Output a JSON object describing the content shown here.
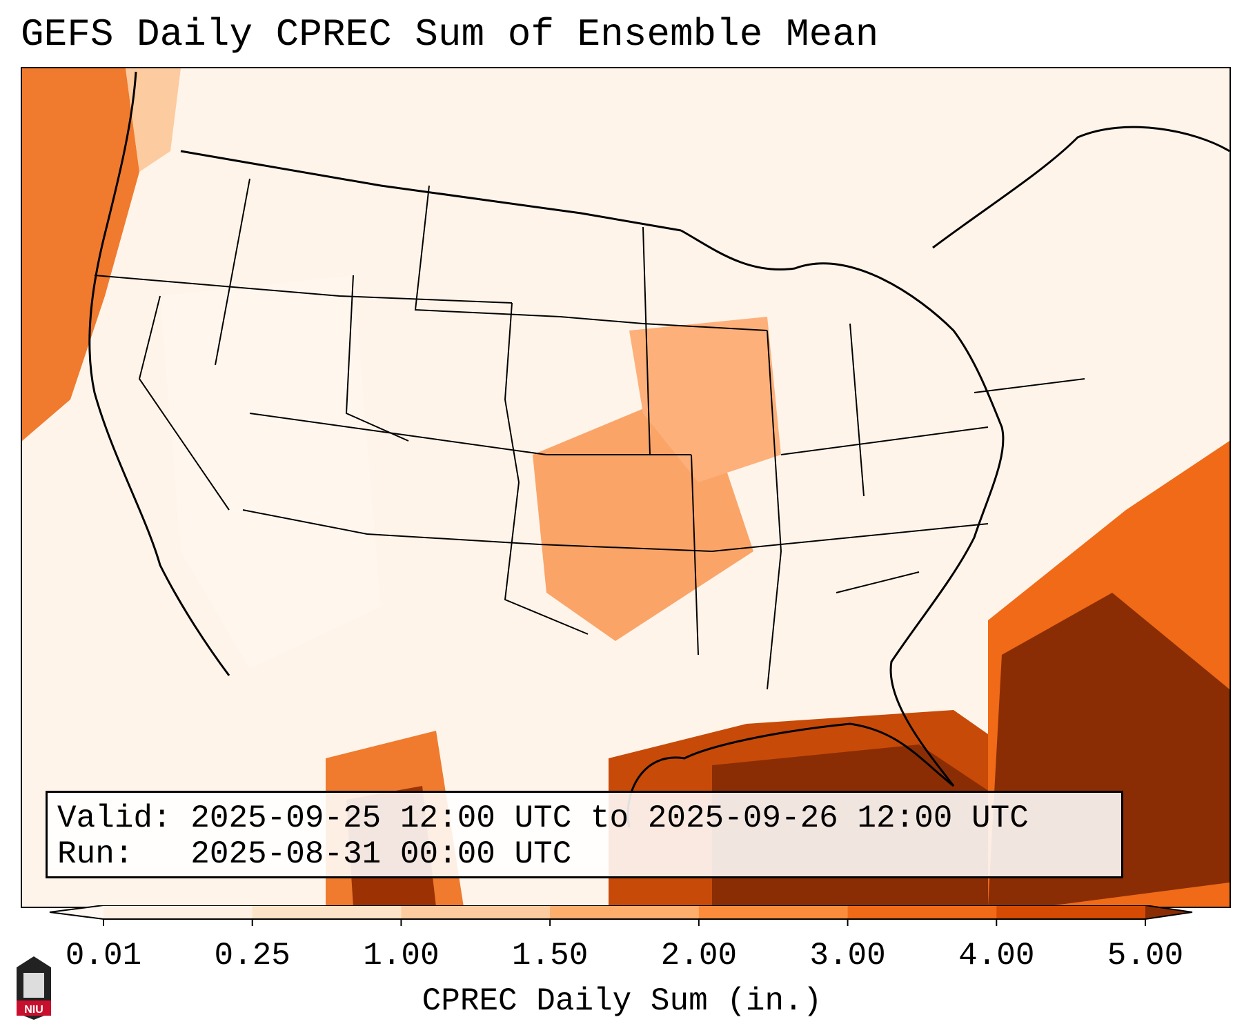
{
  "title": "GEFS Daily CPREC Sum of Ensemble Mean",
  "valid": "Valid: 2025-09-25 12:00 UTC to 2025-09-26 12:00 UTC",
  "run": "Run:   2025-08-31 00:00 UTC",
  "colorbar": {
    "label": "CPREC Daily Sum (in.)",
    "ticks": [
      "0.01",
      "0.25",
      "1.00",
      "1.50",
      "2.00",
      "3.00",
      "4.00",
      "5.00"
    ],
    "colors": [
      "#fef0e3",
      "#fde3c8",
      "#fdcba0",
      "#fdad6c",
      "#fb8c3c",
      "#f06a17",
      "#d64b04",
      "#9c3203"
    ],
    "under_color": "#fff8f2",
    "over_color": "#8a2d04"
  },
  "logo": {
    "text": "NIU",
    "colors": {
      "top": "#222222",
      "bottom": "#c8102e"
    }
  }
}
